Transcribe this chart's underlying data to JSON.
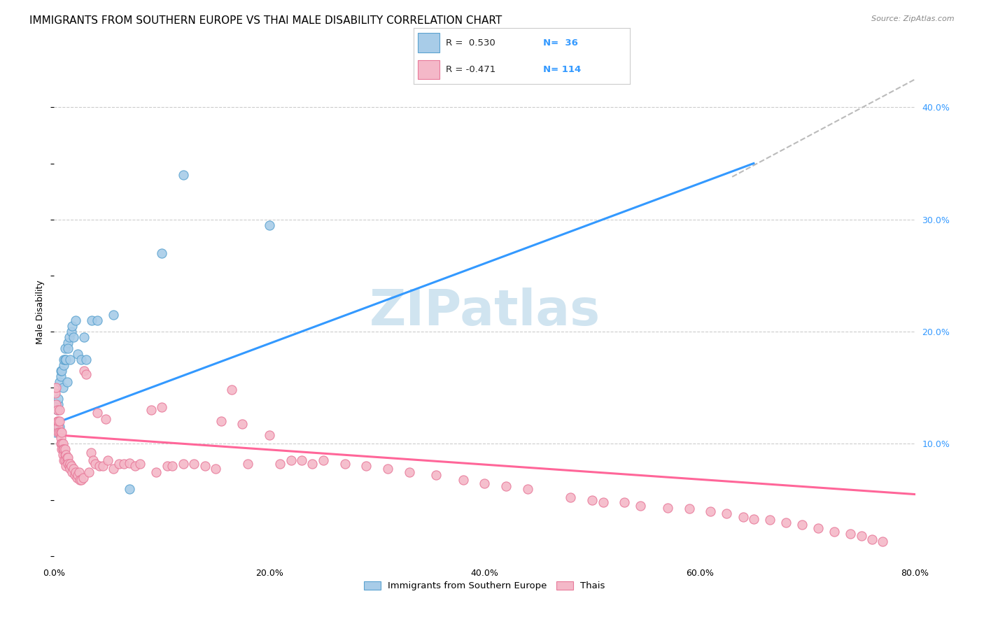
{
  "title": "IMMIGRANTS FROM SOUTHERN EUROPE VS THAI MALE DISABILITY CORRELATION CHART",
  "source": "Source: ZipAtlas.com",
  "ylabel": "Male Disability",
  "xlim": [
    0.0,
    0.8
  ],
  "ylim": [
    -0.005,
    0.44
  ],
  "xticks": [
    0.0,
    0.1,
    0.2,
    0.3,
    0.4,
    0.5,
    0.6,
    0.7,
    0.8
  ],
  "xticklabels": [
    "0.0%",
    "",
    "20.0%",
    "",
    "40.0%",
    "",
    "60.0%",
    "",
    "80.0%"
  ],
  "yticks_right": [
    0.1,
    0.2,
    0.3,
    0.4
  ],
  "yticklabels_right": [
    "10.0%",
    "20.0%",
    "30.0%",
    "40.0%"
  ],
  "legend_labels": [
    "Immigrants from Southern Europe",
    "Thais"
  ],
  "blue_color": "#a8cce8",
  "pink_color": "#f4b8c8",
  "blue_edge_color": "#5ba3d0",
  "pink_edge_color": "#e87a9a",
  "blue_line_color": "#3399ff",
  "pink_line_color": "#ff6699",
  "dash_line_color": "#bbbbbb",
  "watermark_color": "#d0e4f0",
  "grid_color": "#cccccc",
  "background_color": "#ffffff",
  "title_fontsize": 11,
  "axis_label_fontsize": 9,
  "tick_fontsize": 9,
  "watermark_fontsize": 52,
  "blue_scatter_x": [
    0.001,
    0.002,
    0.003,
    0.004,
    0.004,
    0.005,
    0.005,
    0.006,
    0.006,
    0.007,
    0.008,
    0.009,
    0.009,
    0.01,
    0.01,
    0.011,
    0.012,
    0.013,
    0.013,
    0.014,
    0.015,
    0.016,
    0.017,
    0.018,
    0.02,
    0.022,
    0.025,
    0.028,
    0.03,
    0.035,
    0.04,
    0.055,
    0.07,
    0.1,
    0.12,
    0.2
  ],
  "blue_scatter_y": [
    0.11,
    0.115,
    0.13,
    0.135,
    0.14,
    0.115,
    0.155,
    0.16,
    0.165,
    0.165,
    0.15,
    0.17,
    0.175,
    0.175,
    0.185,
    0.175,
    0.155,
    0.19,
    0.185,
    0.195,
    0.175,
    0.2,
    0.205,
    0.195,
    0.21,
    0.18,
    0.175,
    0.195,
    0.175,
    0.21,
    0.21,
    0.215,
    0.06,
    0.27,
    0.34,
    0.295
  ],
  "pink_scatter_x": [
    0.001,
    0.002,
    0.002,
    0.003,
    0.003,
    0.004,
    0.004,
    0.004,
    0.005,
    0.005,
    0.005,
    0.006,
    0.006,
    0.006,
    0.007,
    0.007,
    0.007,
    0.008,
    0.008,
    0.008,
    0.009,
    0.009,
    0.01,
    0.01,
    0.01,
    0.011,
    0.011,
    0.012,
    0.012,
    0.013,
    0.013,
    0.014,
    0.015,
    0.015,
    0.016,
    0.017,
    0.018,
    0.019,
    0.02,
    0.021,
    0.022,
    0.023,
    0.024,
    0.025,
    0.027,
    0.028,
    0.03,
    0.032,
    0.034,
    0.036,
    0.038,
    0.04,
    0.042,
    0.045,
    0.048,
    0.05,
    0.055,
    0.06,
    0.065,
    0.07,
    0.075,
    0.08,
    0.09,
    0.095,
    0.1,
    0.105,
    0.11,
    0.12,
    0.13,
    0.14,
    0.15,
    0.155,
    0.165,
    0.175,
    0.18,
    0.2,
    0.21,
    0.22,
    0.23,
    0.24,
    0.25,
    0.27,
    0.29,
    0.31,
    0.33,
    0.355,
    0.38,
    0.4,
    0.42,
    0.44,
    0.48,
    0.5,
    0.51,
    0.53,
    0.545,
    0.57,
    0.59,
    0.61,
    0.625,
    0.64,
    0.65,
    0.665,
    0.68,
    0.695,
    0.71,
    0.725,
    0.74,
    0.75,
    0.76,
    0.77
  ],
  "pink_scatter_y": [
    0.145,
    0.15,
    0.135,
    0.12,
    0.13,
    0.115,
    0.11,
    0.12,
    0.13,
    0.12,
    0.11,
    0.11,
    0.105,
    0.1,
    0.11,
    0.1,
    0.095,
    0.1,
    0.095,
    0.09,
    0.095,
    0.085,
    0.09,
    0.085,
    0.095,
    0.09,
    0.08,
    0.085,
    0.088,
    0.088,
    0.082,
    0.08,
    0.082,
    0.078,
    0.08,
    0.075,
    0.078,
    0.072,
    0.075,
    0.07,
    0.072,
    0.075,
    0.068,
    0.068,
    0.07,
    0.165,
    0.162,
    0.075,
    0.092,
    0.085,
    0.082,
    0.128,
    0.08,
    0.08,
    0.122,
    0.085,
    0.078,
    0.082,
    0.082,
    0.083,
    0.08,
    0.082,
    0.13,
    0.075,
    0.133,
    0.08,
    0.08,
    0.082,
    0.082,
    0.08,
    0.078,
    0.12,
    0.148,
    0.118,
    0.082,
    0.108,
    0.082,
    0.085,
    0.085,
    0.082,
    0.085,
    0.082,
    0.08,
    0.078,
    0.075,
    0.072,
    0.068,
    0.065,
    0.062,
    0.06,
    0.052,
    0.05,
    0.048,
    0.048,
    0.045,
    0.043,
    0.042,
    0.04,
    0.038,
    0.035,
    0.033,
    0.032,
    0.03,
    0.028,
    0.025,
    0.022,
    0.02,
    0.018,
    0.015,
    0.013
  ],
  "blue_trendline_x": [
    0.0,
    0.65
  ],
  "blue_trendline_y": [
    0.118,
    0.35
  ],
  "pink_trendline_x": [
    0.0,
    0.8
  ],
  "pink_trendline_y": [
    0.108,
    0.055
  ],
  "dash_trendline_x": [
    0.63,
    0.8
  ],
  "dash_trendline_y": [
    0.338,
    0.425
  ]
}
